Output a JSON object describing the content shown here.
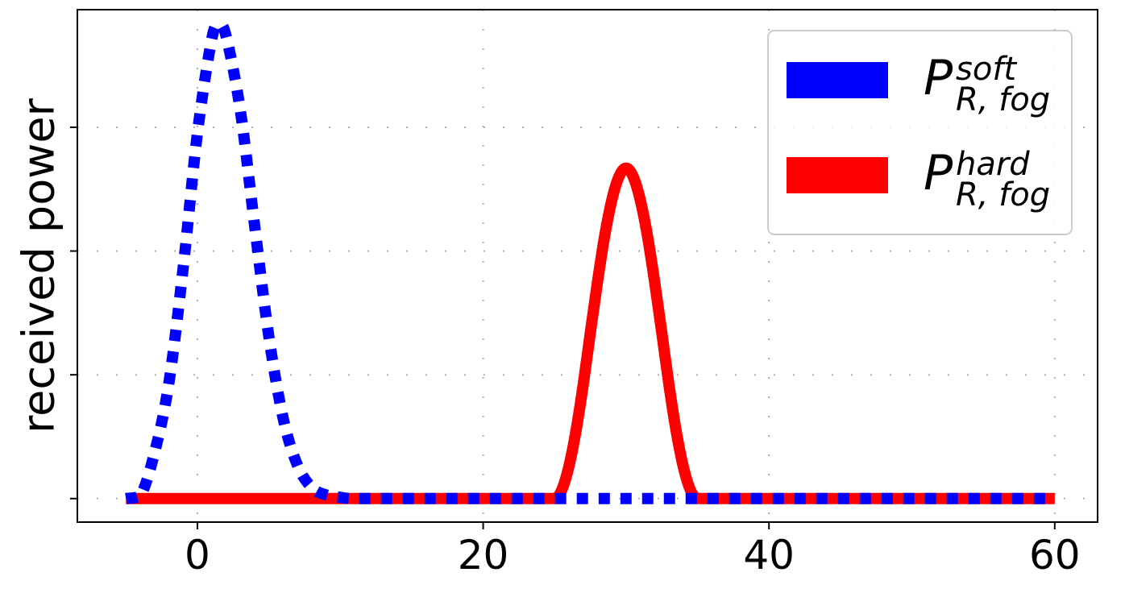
{
  "chart_data": {
    "type": "line",
    "title": "",
    "xlabel": "",
    "ylabel": "received power",
    "xlim": [
      -8.4,
      63.0
    ],
    "ylim": [
      -0.19,
      3.95
    ],
    "xticks": [
      0,
      20,
      40,
      60
    ],
    "xtick_labels": [
      "0",
      "20",
      "40",
      "60"
    ],
    "yticks": [
      0,
      1,
      2,
      3
    ],
    "ytick_labels": [
      "",
      "",
      "",
      ""
    ],
    "grid": true,
    "legend_position": "top-right",
    "series": [
      {
        "name": "P_R,fog^hard",
        "legend_main": "P",
        "legend_sup": "hard",
        "legend_sub": "R, fog",
        "color": "#ff0000",
        "style": "solid",
        "x": [
          -5,
          0,
          5,
          10,
          15,
          20,
          24,
          25,
          25.5,
          26,
          26.5,
          27,
          27.5,
          28,
          28.5,
          29,
          29.5,
          30,
          30.5,
          31,
          31.5,
          32,
          32.5,
          33,
          33.5,
          34,
          34.5,
          35,
          36,
          40,
          45,
          50,
          55,
          60
        ],
        "y": [
          0,
          0,
          0,
          0,
          0,
          0,
          0,
          0,
          0.07,
          0.26,
          0.55,
          0.92,
          1.34,
          1.75,
          2.12,
          2.41,
          2.6,
          2.67,
          2.6,
          2.41,
          2.12,
          1.75,
          1.34,
          0.92,
          0.55,
          0.26,
          0.07,
          0,
          0,
          0,
          0,
          0,
          0,
          0
        ]
      },
      {
        "name": "P_R,fog^soft",
        "legend_main": "P",
        "legend_sup": "soft",
        "legend_sub": "R, fog",
        "color": "#0000ff",
        "style": "dotted",
        "x": [
          -5,
          -4,
          -3,
          -2,
          -1,
          0,
          1,
          1.5,
          2,
          3,
          4,
          5,
          6,
          7,
          8,
          9,
          10,
          11,
          15,
          20,
          30,
          40,
          50,
          60
        ],
        "y": [
          0,
          0.02,
          0.37,
          0.93,
          1.86,
          2.95,
          3.71,
          3.82,
          3.74,
          3.14,
          2.21,
          1.31,
          0.65,
          0.27,
          0.09,
          0.03,
          0.01,
          0,
          0,
          0,
          0,
          0,
          0,
          0
        ]
      }
    ]
  }
}
